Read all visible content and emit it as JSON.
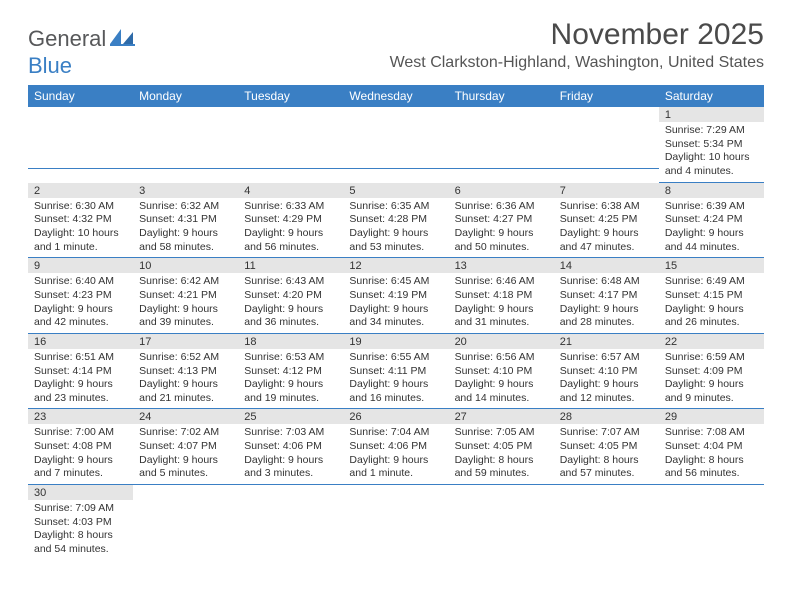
{
  "brand": {
    "name_part1": "General",
    "name_part2": "Blue"
  },
  "title": "November 2025",
  "location": "West Clarkston-Highland, Washington, United States",
  "colors": {
    "header_bg": "#3a7fc4",
    "daynum_bg": "#e5e5e5",
    "row_border": "#3a7fc4",
    "text": "#333333",
    "logo_gray": "#57585a",
    "logo_blue": "#3a7fc4"
  },
  "day_headers": [
    "Sunday",
    "Monday",
    "Tuesday",
    "Wednesday",
    "Thursday",
    "Friday",
    "Saturday"
  ],
  "weeks": [
    [
      null,
      null,
      null,
      null,
      null,
      null,
      {
        "n": "1",
        "sunrise": "7:29 AM",
        "sunset": "5:34 PM",
        "daylight": "10 hours and 4 minutes."
      }
    ],
    [
      {
        "n": "2",
        "sunrise": "6:30 AM",
        "sunset": "4:32 PM",
        "daylight": "10 hours and 1 minute."
      },
      {
        "n": "3",
        "sunrise": "6:32 AM",
        "sunset": "4:31 PM",
        "daylight": "9 hours and 58 minutes."
      },
      {
        "n": "4",
        "sunrise": "6:33 AM",
        "sunset": "4:29 PM",
        "daylight": "9 hours and 56 minutes."
      },
      {
        "n": "5",
        "sunrise": "6:35 AM",
        "sunset": "4:28 PM",
        "daylight": "9 hours and 53 minutes."
      },
      {
        "n": "6",
        "sunrise": "6:36 AM",
        "sunset": "4:27 PM",
        "daylight": "9 hours and 50 minutes."
      },
      {
        "n": "7",
        "sunrise": "6:38 AM",
        "sunset": "4:25 PM",
        "daylight": "9 hours and 47 minutes."
      },
      {
        "n": "8",
        "sunrise": "6:39 AM",
        "sunset": "4:24 PM",
        "daylight": "9 hours and 44 minutes."
      }
    ],
    [
      {
        "n": "9",
        "sunrise": "6:40 AM",
        "sunset": "4:23 PM",
        "daylight": "9 hours and 42 minutes."
      },
      {
        "n": "10",
        "sunrise": "6:42 AM",
        "sunset": "4:21 PM",
        "daylight": "9 hours and 39 minutes."
      },
      {
        "n": "11",
        "sunrise": "6:43 AM",
        "sunset": "4:20 PM",
        "daylight": "9 hours and 36 minutes."
      },
      {
        "n": "12",
        "sunrise": "6:45 AM",
        "sunset": "4:19 PM",
        "daylight": "9 hours and 34 minutes."
      },
      {
        "n": "13",
        "sunrise": "6:46 AM",
        "sunset": "4:18 PM",
        "daylight": "9 hours and 31 minutes."
      },
      {
        "n": "14",
        "sunrise": "6:48 AM",
        "sunset": "4:17 PM",
        "daylight": "9 hours and 28 minutes."
      },
      {
        "n": "15",
        "sunrise": "6:49 AM",
        "sunset": "4:15 PM",
        "daylight": "9 hours and 26 minutes."
      }
    ],
    [
      {
        "n": "16",
        "sunrise": "6:51 AM",
        "sunset": "4:14 PM",
        "daylight": "9 hours and 23 minutes."
      },
      {
        "n": "17",
        "sunrise": "6:52 AM",
        "sunset": "4:13 PM",
        "daylight": "9 hours and 21 minutes."
      },
      {
        "n": "18",
        "sunrise": "6:53 AM",
        "sunset": "4:12 PM",
        "daylight": "9 hours and 19 minutes."
      },
      {
        "n": "19",
        "sunrise": "6:55 AM",
        "sunset": "4:11 PM",
        "daylight": "9 hours and 16 minutes."
      },
      {
        "n": "20",
        "sunrise": "6:56 AM",
        "sunset": "4:10 PM",
        "daylight": "9 hours and 14 minutes."
      },
      {
        "n": "21",
        "sunrise": "6:57 AM",
        "sunset": "4:10 PM",
        "daylight": "9 hours and 12 minutes."
      },
      {
        "n": "22",
        "sunrise": "6:59 AM",
        "sunset": "4:09 PM",
        "daylight": "9 hours and 9 minutes."
      }
    ],
    [
      {
        "n": "23",
        "sunrise": "7:00 AM",
        "sunset": "4:08 PM",
        "daylight": "9 hours and 7 minutes."
      },
      {
        "n": "24",
        "sunrise": "7:02 AM",
        "sunset": "4:07 PM",
        "daylight": "9 hours and 5 minutes."
      },
      {
        "n": "25",
        "sunrise": "7:03 AM",
        "sunset": "4:06 PM",
        "daylight": "9 hours and 3 minutes."
      },
      {
        "n": "26",
        "sunrise": "7:04 AM",
        "sunset": "4:06 PM",
        "daylight": "9 hours and 1 minute."
      },
      {
        "n": "27",
        "sunrise": "7:05 AM",
        "sunset": "4:05 PM",
        "daylight": "8 hours and 59 minutes."
      },
      {
        "n": "28",
        "sunrise": "7:07 AM",
        "sunset": "4:05 PM",
        "daylight": "8 hours and 57 minutes."
      },
      {
        "n": "29",
        "sunrise": "7:08 AM",
        "sunset": "4:04 PM",
        "daylight": "8 hours and 56 minutes."
      }
    ],
    [
      {
        "n": "30",
        "sunrise": "7:09 AM",
        "sunset": "4:03 PM",
        "daylight": "8 hours and 54 minutes."
      },
      null,
      null,
      null,
      null,
      null,
      null
    ]
  ],
  "labels": {
    "sunrise": "Sunrise:",
    "sunset": "Sunset:",
    "daylight": "Daylight:"
  }
}
